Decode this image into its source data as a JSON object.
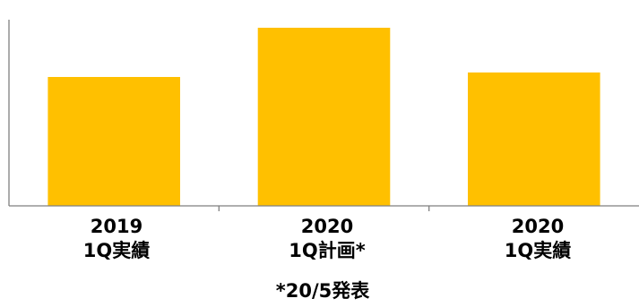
{
  "chart_data": {
    "type": "bar",
    "categories": [
      [
        "2019",
        "1Q実績"
      ],
      [
        "2020",
        "1Q計画*"
      ],
      [
        "2020",
        "1Q実績"
      ]
    ],
    "values": [
      144,
      199,
      149
    ],
    "ylim": [
      0,
      210
    ],
    "grid": false,
    "bar_color": "#FFC000",
    "axis_color": "#7F7F7F"
  },
  "footnote": "*20/5発表"
}
